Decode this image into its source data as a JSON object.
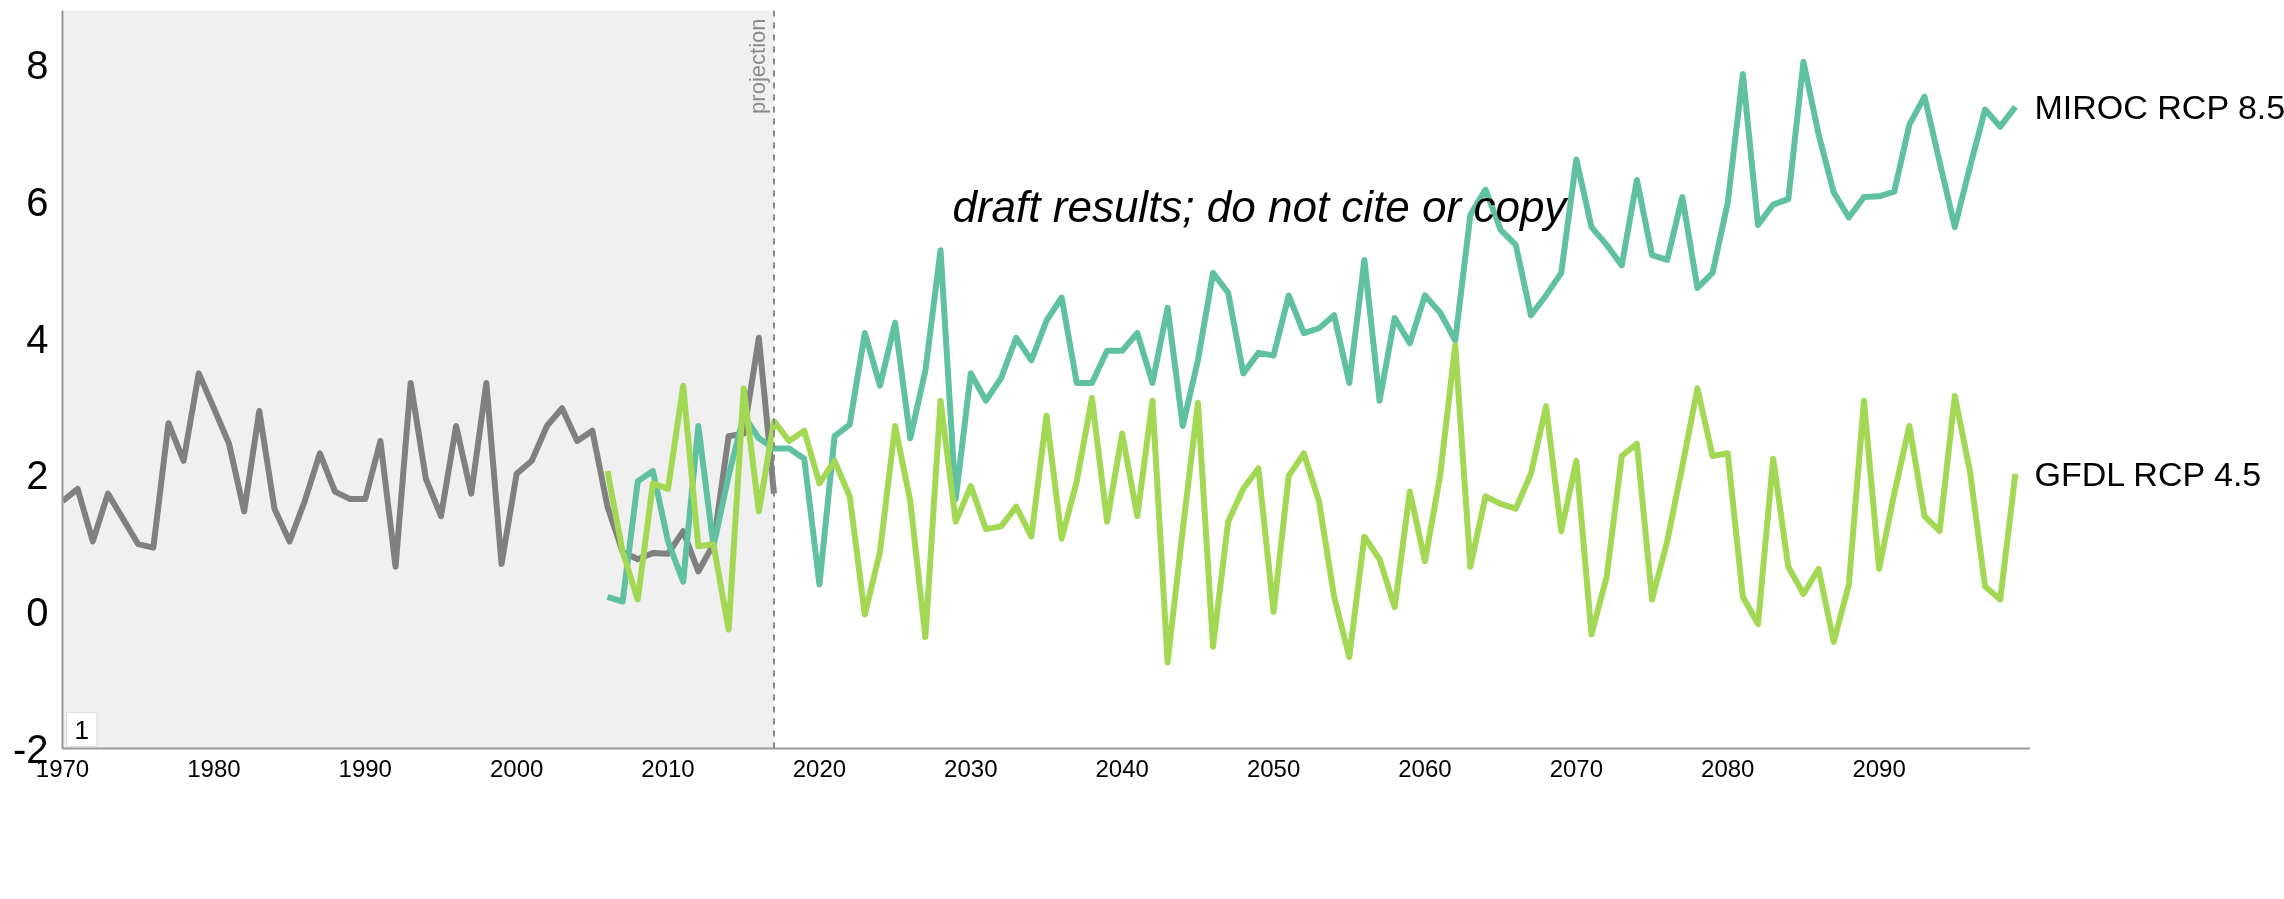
{
  "chart_data": {
    "type": "line",
    "x": [
      1970,
      1971,
      1972,
      1973,
      1974,
      1975,
      1976,
      1977,
      1978,
      1979,
      1980,
      1981,
      1982,
      1983,
      1984,
      1985,
      1986,
      1987,
      1988,
      1989,
      1990,
      1991,
      1992,
      1993,
      1994,
      1995,
      1996,
      1997,
      1998,
      1999,
      2000,
      2001,
      2002,
      2003,
      2004,
      2005,
      2006,
      2007,
      2008,
      2009,
      2010,
      2011,
      2012,
      2013,
      2014,
      2015,
      2016,
      2017
    ],
    "series": [
      {
        "color": "#808080",
        "values": [
          1.62,
          1.8,
          1.03,
          1.73,
          1.36,
          0.99,
          0.94,
          2.76,
          2.21,
          3.49,
          2.98,
          2.46,
          1.47,
          2.94,
          1.51,
          1.03,
          1.62,
          2.32,
          1.76,
          1.65,
          1.65,
          2.5,
          0.66,
          3.35,
          1.95,
          1.4,
          2.72,
          1.73,
          3.35,
          0.7,
          2.02,
          2.21,
          2.72,
          2.98,
          2.5,
          2.65,
          1.54,
          0.88,
          0.77,
          0.86,
          0.85,
          1.18,
          0.59,
          0.99,
          2.57,
          2.61,
          4.01,
          1.73
        ]
      },
      {
        "name": "MIROC RCP 8.5",
        "color": "#5fc0a2",
        "x": [
          2006,
          2007,
          2008,
          2009,
          2010,
          2011,
          2012,
          2013,
          2014,
          2015,
          2016,
          2017,
          2018,
          2019,
          2020,
          2021,
          2022,
          2023,
          2024,
          2025,
          2026,
          2027,
          2028,
          2029,
          2030,
          2031,
          2032,
          2033,
          2034,
          2035,
          2036,
          2037,
          2038,
          2039,
          2040,
          2041,
          2042,
          2043,
          2044,
          2045,
          2046,
          2047,
          2048,
          2049,
          2050,
          2051,
          2052,
          2053,
          2054,
          2055,
          2056,
          2057,
          2058,
          2059,
          2060,
          2061,
          2062,
          2063,
          2064,
          2065,
          2066,
          2067,
          2068,
          2069,
          2070,
          2071,
          2072,
          2073,
          2074,
          2075,
          2076,
          2077,
          2078,
          2079,
          2080,
          2081,
          2082,
          2083,
          2084,
          2085,
          2086,
          2087,
          2088,
          2089,
          2090,
          2091,
          2092,
          2093,
          2094,
          2095,
          2096,
          2097,
          2098,
          2099
        ],
        "values": [
          0.22,
          0.15,
          1.91,
          2.06,
          1.03,
          0.44,
          2.72,
          0.96,
          1.99,
          2.87,
          2.54,
          2.39,
          2.39,
          2.24,
          0.4,
          2.57,
          2.74,
          4.08,
          3.31,
          4.23,
          2.54,
          3.53,
          5.29,
          1.65,
          3.49,
          3.09,
          3.42,
          4.01,
          3.68,
          4.26,
          4.6,
          3.35,
          3.35,
          3.82,
          3.82,
          4.08,
          3.35,
          4.45,
          2.72,
          3.68,
          4.96,
          4.67,
          3.49,
          3.79,
          3.75,
          4.63,
          4.08,
          4.15,
          4.34,
          3.35,
          5.15,
          3.09,
          4.3,
          3.93,
          4.63,
          4.38,
          3.97,
          5.81,
          6.18,
          5.59,
          5.37,
          4.34,
          4.63,
          4.96,
          6.62,
          5.63,
          5.37,
          5.07,
          6.32,
          5.22,
          5.15,
          6.07,
          4.74,
          4.96,
          5.99,
          7.87,
          5.66,
          5.96,
          6.04,
          8.05,
          6.99,
          6.14,
          5.77,
          6.07,
          6.08,
          6.15,
          7.13,
          7.54,
          6.58,
          5.63,
          6.51,
          7.35,
          7.1,
          7.39
        ]
      },
      {
        "name": "GFDL RCP 4.5",
        "color": "#a2d854",
        "x": [
          2006,
          2007,
          2008,
          2009,
          2010,
          2011,
          2012,
          2013,
          2014,
          2015,
          2016,
          2017,
          2018,
          2019,
          2020,
          2021,
          2022,
          2023,
          2024,
          2025,
          2026,
          2027,
          2028,
          2029,
          2030,
          2031,
          2032,
          2033,
          2034,
          2035,
          2036,
          2037,
          2038,
          2039,
          2040,
          2041,
          2042,
          2043,
          2044,
          2045,
          2046,
          2047,
          2048,
          2049,
          2050,
          2051,
          2052,
          2053,
          2054,
          2055,
          2056,
          2057,
          2058,
          2059,
          2060,
          2061,
          2062,
          2063,
          2064,
          2065,
          2066,
          2067,
          2068,
          2069,
          2070,
          2071,
          2072,
          2073,
          2074,
          2075,
          2076,
          2077,
          2078,
          2079,
          2080,
          2081,
          2082,
          2083,
          2084,
          2085,
          2086,
          2087,
          2088,
          2089,
          2090,
          2091,
          2092,
          2093,
          2094,
          2095,
          2096,
          2097,
          2098,
          2099
        ],
        "values": [
          2.06,
          0.88,
          0.18,
          1.88,
          1.8,
          3.31,
          0.96,
          0.99,
          -0.26,
          3.27,
          1.47,
          2.79,
          2.5,
          2.65,
          1.88,
          2.21,
          1.69,
          -0.04,
          0.88,
          2.72,
          1.62,
          -0.37,
          3.09,
          1.32,
          1.84,
          1.21,
          1.25,
          1.54,
          1.1,
          2.87,
          1.07,
          1.91,
          3.13,
          1.32,
          2.61,
          1.4,
          3.09,
          -0.74,
          1.2,
          3.06,
          -0.51,
          1.32,
          1.8,
          2.1,
          0.0,
          1.99,
          2.32,
          1.62,
          0.22,
          -0.66,
          1.1,
          0.77,
          0.07,
          1.76,
          0.74,
          1.99,
          3.9,
          0.66,
          1.69,
          1.58,
          1.51,
          2.02,
          3.01,
          1.18,
          2.21,
          -0.33,
          0.51,
          2.28,
          2.46,
          0.18,
          1.03,
          2.13,
          3.27,
          2.28,
          2.32,
          0.22,
          -0.18,
          2.24,
          0.66,
          0.26,
          0.63,
          -0.44,
          0.4,
          3.09,
          0.63,
          1.73,
          2.72,
          1.4,
          1.18,
          3.16,
          2.06,
          0.37,
          0.18,
          2.02
        ]
      }
    ],
    "xlim": [
      1970,
      2100
    ],
    "xticks": [
      1970,
      1980,
      1990,
      2000,
      2010,
      2020,
      2030,
      2040,
      2050,
      2060,
      2070,
      2080,
      2090
    ],
    "ylim": [
      -2,
      8.8
    ],
    "yticks": [
      -2,
      0,
      2,
      4,
      6,
      8
    ],
    "grid": false,
    "legend": false,
    "line_style": "solid",
    "marker": "none",
    "ref_lines": [
      {
        "axis": "x",
        "value": 2017,
        "label": "projection",
        "color": "#8a8a8a",
        "line_style": "dashed"
      }
    ],
    "bands": [
      {
        "axis": "x",
        "from": 1970,
        "to": 2017,
        "color": "#f0f0f0"
      }
    ],
    "annotations": [
      "draft results; do not cite or copy",
      "1"
    ]
  }
}
